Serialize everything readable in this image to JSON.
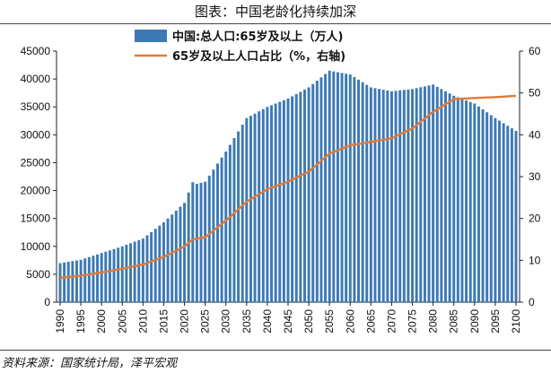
{
  "header": {
    "title": "图表：中国老龄化持续加深"
  },
  "footer": {
    "source": "资料来源：国家统计局，泽平宏观"
  },
  "chart_data": {
    "type": "bar+line",
    "y_left": {
      "lim": [
        0,
        45000
      ],
      "ticks": [
        0,
        5000,
        10000,
        15000,
        20000,
        25000,
        30000,
        35000,
        40000,
        45000
      ]
    },
    "y_right": {
      "lim": [
        0,
        60
      ],
      "ticks": [
        0,
        10,
        20,
        30,
        40,
        50,
        60
      ]
    },
    "x_tick_labels": [
      "1990",
      "1995",
      "2000",
      "2005",
      "2010",
      "2015",
      "2020",
      "2025",
      "2030",
      "2035",
      "2040",
      "2045",
      "2050",
      "2055",
      "2060",
      "2065",
      "2070",
      "2075",
      "2080",
      "2085",
      "2090",
      "2095",
      "2100"
    ],
    "x_anchors": [
      [
        1990,
        7000
      ],
      [
        1995,
        7600
      ],
      [
        2000,
        8800
      ],
      [
        2005,
        10000
      ],
      [
        2010,
        11400
      ],
      [
        2015,
        14300
      ],
      [
        2020,
        17800
      ],
      [
        2022,
        21500
      ],
      [
        2023,
        21200
      ],
      [
        2025,
        21600
      ],
      [
        2030,
        27000
      ],
      [
        2035,
        33000
      ],
      [
        2040,
        35000
      ],
      [
        2045,
        36500
      ],
      [
        2050,
        38500
      ],
      [
        2055,
        41500
      ],
      [
        2060,
        40800
      ],
      [
        2065,
        38500
      ],
      [
        2070,
        37800
      ],
      [
        2075,
        38200
      ],
      [
        2080,
        39000
      ],
      [
        2085,
        37000
      ],
      [
        2090,
        35600
      ],
      [
        2095,
        33000
      ],
      [
        2100,
        30700
      ]
    ],
    "series": [
      {
        "name": "中国:总人口:65岁及以上（万人)",
        "type": "bar",
        "axis": "left",
        "color": "#3d79b5",
        "anchor_years": [
          1990,
          1995,
          2000,
          2005,
          2010,
          2015,
          2020,
          2022,
          2023,
          2025,
          2030,
          2035,
          2040,
          2045,
          2050,
          2055,
          2060,
          2065,
          2070,
          2075,
          2080,
          2085,
          2090,
          2095,
          2100
        ],
        "anchor_values": [
          7000,
          7600,
          8800,
          10000,
          11400,
          14300,
          17800,
          21500,
          21200,
          21600,
          27000,
          33000,
          35000,
          36500,
          38500,
          41500,
          40800,
          38500,
          37800,
          38200,
          39000,
          37000,
          35600,
          33000,
          30700
        ]
      },
      {
        "name": "65岁及以上人口占比（%，右轴)",
        "type": "line",
        "axis": "right",
        "color": "#e07b39",
        "anchor_years": [
          1990,
          1995,
          2000,
          2005,
          2010,
          2015,
          2020,
          2022,
          2025,
          2030,
          2035,
          2040,
          2045,
          2050,
          2055,
          2060,
          2065,
          2070,
          2075,
          2080,
          2085,
          2090,
          2095,
          2100
        ],
        "anchor_values": [
          5.8,
          6.3,
          7.1,
          8.0,
          9.0,
          10.8,
          13.3,
          15.0,
          15.5,
          19.5,
          24.0,
          27.0,
          28.8,
          31.2,
          35.5,
          37.5,
          38.3,
          39.2,
          41.5,
          45.5,
          48.5,
          48.8,
          49.0,
          49.3
        ]
      }
    ]
  }
}
